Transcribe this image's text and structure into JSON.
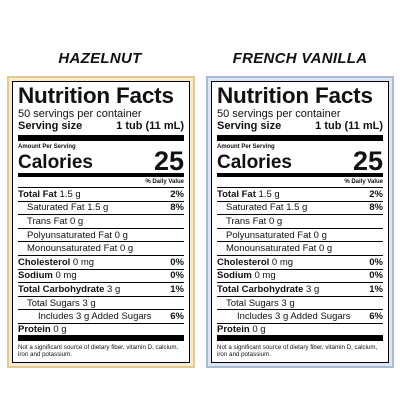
{
  "labels": [
    {
      "flavor": "HAZELNUT",
      "border_color": "#e8c88a",
      "background_color": "#f6ecd2",
      "heading": "Nutrition Facts",
      "servings": "50 servings per container",
      "serving_size_label": "Serving size",
      "serving_size_value": "1 tub (11 mL)",
      "amount_per_serving": "Amount Per Serving",
      "calories_label": "Calories",
      "calories_value": "25",
      "dv_header": "% Daily Value",
      "rows": [
        {
          "name": "Total Fat",
          "amount": "1.5 g",
          "dv": "2%"
        },
        {
          "name": "Saturated Fat",
          "amount": "1.5 g",
          "dv": "8%"
        },
        {
          "name": "Trans Fat",
          "amount": "0 g",
          "dv": ""
        },
        {
          "name": "Polyunsaturated Fat",
          "amount": "0 g",
          "dv": ""
        },
        {
          "name": "Monounsaturated Fat",
          "amount": "0 g",
          "dv": ""
        },
        {
          "name": "Cholesterol",
          "amount": "0 mg",
          "dv": "0%"
        },
        {
          "name": "Sodium",
          "amount": "0 mg",
          "dv": "0%"
        },
        {
          "name": "Total Carbohydrate",
          "amount": "3 g",
          "dv": "1%"
        },
        {
          "name": "Total Sugars",
          "amount": "3 g",
          "dv": ""
        },
        {
          "name": "Includes 3 g Added Sugars",
          "amount": "",
          "dv": "6%"
        },
        {
          "name": "Protein",
          "amount": "0 g",
          "dv": ""
        }
      ],
      "footnote": "Not a significant source of dietary fiber, vitamin D, calcium, iron and potassium."
    },
    {
      "flavor": "FRENCH VANILLA",
      "border_color": "#a9bcd6",
      "background_color": "#dde6f2",
      "heading": "Nutrition Facts",
      "servings": "50 servings per container",
      "serving_size_label": "Serving size",
      "serving_size_value": "1 tub (11 mL)",
      "amount_per_serving": "Amount Per Serving",
      "calories_label": "Calories",
      "calories_value": "25",
      "dv_header": "% Daily Value",
      "rows": [
        {
          "name": "Total Fat",
          "amount": "1.5 g",
          "dv": "2%"
        },
        {
          "name": "Saturated Fat",
          "amount": "1.5 g",
          "dv": "8%"
        },
        {
          "name": "Trans Fat",
          "amount": "0 g",
          "dv": ""
        },
        {
          "name": "Polyunsaturated Fat",
          "amount": "0 g",
          "dv": ""
        },
        {
          "name": "Monounsaturated Fat",
          "amount": "0 g",
          "dv": ""
        },
        {
          "name": "Cholesterol",
          "amount": "0 mg",
          "dv": "0%"
        },
        {
          "name": "Sodium",
          "amount": "0 mg",
          "dv": "0%"
        },
        {
          "name": "Total Carbohydrate",
          "amount": "3 g",
          "dv": "1%"
        },
        {
          "name": "Total Sugars",
          "amount": "3 g",
          "dv": ""
        },
        {
          "name": "Includes 3 g Added Sugars",
          "amount": "",
          "dv": "6%"
        },
        {
          "name": "Protein",
          "amount": "0 g",
          "dv": ""
        }
      ],
      "footnote": "Not a significant source of dietary fiber, vitamin D, calcium, iron and potassium."
    }
  ]
}
